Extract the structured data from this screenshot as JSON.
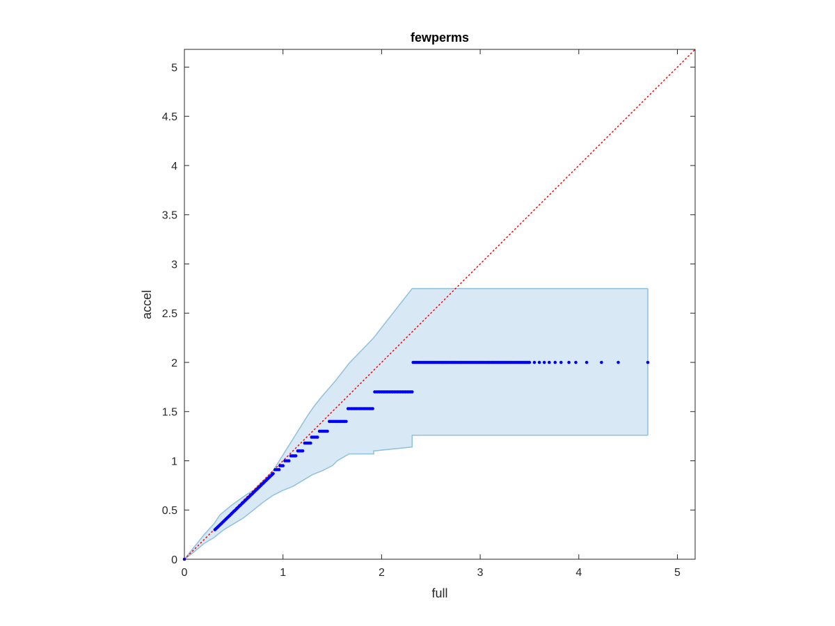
{
  "chart_data": {
    "type": "scatter",
    "title": "fewperms",
    "xlabel": "full",
    "ylabel": "accel",
    "xlim": [
      0,
      5.18
    ],
    "ylim": [
      0,
      5.18
    ],
    "xticks": [
      0,
      1,
      2,
      3,
      4,
      5
    ],
    "xtick_labels": [
      "0",
      "1",
      "2",
      "3",
      "4",
      "5"
    ],
    "yticks": [
      0,
      0.5,
      1,
      1.5,
      2,
      2.5,
      3,
      3.5,
      4,
      4.5,
      5
    ],
    "ytick_labels": [
      "0",
      "0.5",
      "1",
      "1.5",
      "2",
      "2.5",
      "3",
      "3.5",
      "4",
      "4.5",
      "5"
    ],
    "grid": false,
    "colors": {
      "points": "#0000ff",
      "diagonal": "#ff0000",
      "band_fill": "#d8e8f4",
      "band_edge": "#8fc1dd",
      "axes": "#262626"
    },
    "reference_line": {
      "style": "dotted",
      "from": [
        0,
        0
      ],
      "to": [
        5.18,
        5.18
      ]
    },
    "band_upper": [
      [
        0,
        0
      ],
      [
        0.08,
        0.1
      ],
      [
        0.2,
        0.25
      ],
      [
        0.3,
        0.36
      ],
      [
        0.36,
        0.45
      ],
      [
        0.42,
        0.5
      ],
      [
        0.48,
        0.55
      ],
      [
        0.55,
        0.6
      ],
      [
        0.62,
        0.65
      ],
      [
        0.7,
        0.7
      ],
      [
        0.75,
        0.75
      ],
      [
        0.8,
        0.8
      ],
      [
        0.86,
        0.86
      ],
      [
        0.9,
        0.9
      ],
      [
        0.95,
        0.98
      ],
      [
        1.0,
        1.06
      ],
      [
        1.05,
        1.14
      ],
      [
        1.1,
        1.22
      ],
      [
        1.15,
        1.3
      ],
      [
        1.2,
        1.38
      ],
      [
        1.25,
        1.46
      ],
      [
        1.32,
        1.56
      ],
      [
        1.4,
        1.66
      ],
      [
        1.53,
        1.81
      ],
      [
        1.67,
        1.99
      ],
      [
        1.92,
        2.25
      ],
      [
        2.31,
        2.75
      ],
      [
        4.7,
        2.75
      ]
    ],
    "band_lower": [
      [
        0,
        0
      ],
      [
        0.08,
        0.06
      ],
      [
        0.2,
        0.16
      ],
      [
        0.3,
        0.22
      ],
      [
        0.4,
        0.3
      ],
      [
        0.5,
        0.36
      ],
      [
        0.6,
        0.42
      ],
      [
        0.7,
        0.5
      ],
      [
        0.8,
        0.58
      ],
      [
        0.9,
        0.65
      ],
      [
        1.0,
        0.7
      ],
      [
        1.1,
        0.74
      ],
      [
        1.2,
        0.8
      ],
      [
        1.3,
        0.86
      ],
      [
        1.4,
        0.9
      ],
      [
        1.5,
        0.95
      ],
      [
        1.55,
        1.0
      ],
      [
        1.67,
        1.07
      ],
      [
        1.92,
        1.07
      ],
      [
        1.92,
        1.1
      ],
      [
        2.31,
        1.14
      ],
      [
        2.31,
        1.26
      ],
      [
        4.7,
        1.26
      ]
    ],
    "steps": [
      {
        "x_start": 0.31,
        "x_end": 0.9,
        "y_start": 0.3,
        "y_end": 0.87,
        "n": 48
      },
      {
        "y": 0.91,
        "x_start": 0.92,
        "x_end": 0.96,
        "n": 3
      },
      {
        "y": 0.95,
        "x_start": 0.97,
        "x_end": 1.0,
        "n": 3
      },
      {
        "y": 1.0,
        "x_start": 1.02,
        "x_end": 1.06,
        "n": 3
      },
      {
        "y": 1.05,
        "x_start": 1.08,
        "x_end": 1.13,
        "n": 4
      },
      {
        "y": 1.1,
        "x_start": 1.15,
        "x_end": 1.2,
        "n": 4
      },
      {
        "y": 1.18,
        "x_start": 1.22,
        "x_end": 1.28,
        "n": 5
      },
      {
        "y": 1.24,
        "x_start": 1.29,
        "x_end": 1.35,
        "n": 5
      },
      {
        "y": 1.3,
        "x_start": 1.37,
        "x_end": 1.45,
        "n": 6
      },
      {
        "y": 1.4,
        "x_start": 1.47,
        "x_end": 1.64,
        "n": 12
      },
      {
        "y": 1.53,
        "x_start": 1.66,
        "x_end": 1.91,
        "n": 16
      },
      {
        "y": 1.7,
        "x_start": 1.93,
        "x_end": 2.31,
        "n": 24
      },
      {
        "y": 2.0,
        "x_start": 2.32,
        "x_end": 3.5,
        "n": 80
      }
    ],
    "points": [
      [
        3.55,
        2.0
      ],
      [
        3.6,
        2.0
      ],
      [
        3.65,
        2.0
      ],
      [
        3.7,
        2.0
      ],
      [
        3.76,
        2.0
      ],
      [
        3.82,
        2.0
      ],
      [
        3.9,
        2.0
      ],
      [
        3.97,
        2.0
      ],
      [
        4.08,
        2.0
      ],
      [
        4.23,
        2.0
      ],
      [
        4.4,
        2.0
      ],
      [
        4.7,
        2.0
      ],
      [
        0.0,
        0.0
      ]
    ]
  }
}
